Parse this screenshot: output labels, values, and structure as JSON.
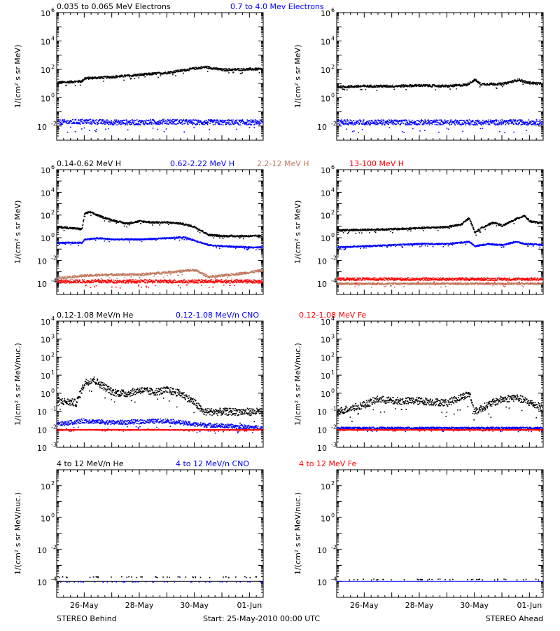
{
  "colors": {
    "black": "#000000",
    "blue": "#0000ff",
    "tan": "#c07a60",
    "red": "#ff0000"
  },
  "footer": {
    "left": "STEREO Behind",
    "center": "Start: 25-May-2010 00:00 UTC",
    "right": "STEREO Ahead"
  },
  "chart_data": [
    {
      "type": "scatter",
      "row": 1,
      "spacecraft": "STEREO Behind",
      "legend": [
        {
          "text": "0.035 to 0.065 MeV Electrons",
          "color": "#000000"
        },
        {
          "text": "0.7 to 4.0 Mev Electrons",
          "color": "#0000ff"
        }
      ],
      "ylabel": "1/(cm² s sr MeV)",
      "yscale": "log",
      "ylim_exp": [
        -3,
        6
      ],
      "ytick_exps": [
        -2,
        0,
        2,
        4,
        6
      ],
      "xlim_days": [
        0,
        7.5
      ],
      "xticks": [
        {
          "day": 1,
          "label": "26-May"
        },
        {
          "day": 3,
          "label": "28-May"
        },
        {
          "day": 5,
          "label": "30-May"
        },
        {
          "day": 7,
          "label": "01-Jun"
        }
      ],
      "series": [
        {
          "color": "#000000",
          "x": [
            0,
            0.9,
            1.0,
            2.0,
            3.0,
            4.0,
            5.0,
            5.4,
            6.0,
            7.0,
            7.5
          ],
          "y_exp": [
            1.1,
            1.2,
            1.4,
            1.5,
            1.65,
            1.8,
            2.1,
            2.2,
            2.0,
            2.05,
            2.05
          ],
          "noise": 0.08
        },
        {
          "color": "#0000ff",
          "x": [
            0,
            1,
            2,
            3,
            4,
            5,
            6,
            7,
            7.5
          ],
          "y_exp": [
            -1.7,
            -1.65,
            -1.7,
            -1.7,
            -1.65,
            -1.7,
            -1.7,
            -1.7,
            -1.7
          ],
          "noise": 0.18
        }
      ]
    },
    {
      "type": "scatter",
      "row": 1,
      "spacecraft": "STEREO Ahead",
      "ylabel": "1/(cm² s sr MeV)",
      "yscale": "log",
      "ylim_exp": [
        -3,
        6
      ],
      "ytick_exps": [
        -2,
        0,
        2,
        4,
        6
      ],
      "xlim_days": [
        0,
        7.5
      ],
      "xticks": [
        {
          "day": 1,
          "label": "26-May"
        },
        {
          "day": 3,
          "label": "28-May"
        },
        {
          "day": 5,
          "label": "30-May"
        },
        {
          "day": 7,
          "label": "01-Jun"
        }
      ],
      "series": [
        {
          "color": "#000000",
          "x": [
            0,
            1,
            2,
            3,
            4,
            4.7,
            5.0,
            5.2,
            6.0,
            6.6,
            6.9,
            7.5
          ],
          "y_exp": [
            0.8,
            0.85,
            0.85,
            0.9,
            0.85,
            0.95,
            1.3,
            1.0,
            1.0,
            1.3,
            1.1,
            1.0
          ],
          "noise": 0.08
        },
        {
          "color": "#0000ff",
          "x": [
            0,
            2,
            4,
            6,
            7.5
          ],
          "y_exp": [
            -1.7,
            -1.7,
            -1.7,
            -1.7,
            -1.7
          ],
          "noise": 0.18
        }
      ]
    },
    {
      "type": "scatter",
      "row": 2,
      "spacecraft": "STEREO Behind",
      "legend": [
        {
          "text": "0.14-0.62 MeV H",
          "color": "#000000"
        },
        {
          "text": "0.62-2.22 MeV H",
          "color": "#0000ff"
        },
        {
          "text": "2.2-12 MeV H",
          "color": "#c07a60"
        },
        {
          "text": "13-100 MeV H",
          "color": "#ff0000"
        }
      ],
      "ylabel": "1/(cm² s sr MeV)",
      "yscale": "log",
      "ylim_exp": [
        -5,
        6
      ],
      "ytick_exps": [
        -4,
        -2,
        0,
        2,
        4,
        6
      ],
      "xlim_days": [
        0,
        7.5
      ],
      "xticks": [
        {
          "day": 1,
          "label": "26-May"
        },
        {
          "day": 3,
          "label": "28-May"
        },
        {
          "day": 5,
          "label": "30-May"
        },
        {
          "day": 7,
          "label": "01-Jun"
        }
      ],
      "series": [
        {
          "color": "#000000",
          "x": [
            0,
            0.5,
            0.9,
            1.0,
            1.2,
            1.6,
            2.0,
            2.5,
            3.0,
            3.5,
            4.0,
            4.5,
            5.0,
            5.5,
            6.0,
            7.0,
            7.5
          ],
          "y_exp": [
            1.0,
            0.9,
            0.8,
            2.2,
            2.3,
            1.9,
            1.6,
            1.3,
            1.5,
            1.4,
            1.4,
            1.3,
            1.0,
            0.3,
            0.2,
            0.2,
            0.2
          ],
          "noise": 0.08
        },
        {
          "color": "#0000ff",
          "x": [
            0,
            0.9,
            1.0,
            1.5,
            2.0,
            3.0,
            4.0,
            4.6,
            5.0,
            5.5,
            6.0,
            7.0,
            7.5
          ],
          "y_exp": [
            -0.4,
            -0.4,
            -0.1,
            0.0,
            -0.1,
            -0.1,
            0.0,
            0.1,
            -0.2,
            -0.6,
            -0.7,
            -0.8,
            -0.8
          ],
          "noise": 0.06
        },
        {
          "color": "#c07a60",
          "x": [
            0,
            1,
            2,
            3,
            4,
            5,
            5.5,
            6,
            7,
            7.5
          ],
          "y_exp": [
            -3.5,
            -3.3,
            -3.2,
            -3.2,
            -3.0,
            -2.8,
            -3.4,
            -3.3,
            -3.0,
            -2.8
          ],
          "noise": 0.1
        },
        {
          "color": "#ff0000",
          "x": [
            0,
            2,
            4,
            6,
            7.5
          ],
          "y_exp": [
            -3.8,
            -3.8,
            -3.8,
            -3.8,
            -3.8
          ],
          "noise": 0.15
        }
      ]
    },
    {
      "type": "scatter",
      "row": 2,
      "spacecraft": "STEREO Ahead",
      "ylabel": "1/(cm² s sr MeV)",
      "yscale": "log",
      "ylim_exp": [
        -5,
        6
      ],
      "ytick_exps": [
        -4,
        -2,
        0,
        2,
        4,
        6
      ],
      "xlim_days": [
        0,
        7.5
      ],
      "xticks": [
        {
          "day": 1,
          "label": "26-May"
        },
        {
          "day": 3,
          "label": "28-May"
        },
        {
          "day": 5,
          "label": "30-May"
        },
        {
          "day": 7,
          "label": "01-Jun"
        }
      ],
      "series": [
        {
          "color": "#000000",
          "x": [
            0,
            1,
            2,
            3,
            4,
            4.5,
            4.8,
            5.0,
            5.3,
            5.7,
            6.0,
            6.5,
            6.8,
            7.0,
            7.5
          ],
          "y_exp": [
            0.7,
            0.75,
            0.8,
            0.9,
            1.0,
            1.2,
            1.8,
            0.5,
            1.0,
            1.4,
            1.1,
            1.7,
            2.0,
            1.5,
            1.3
          ],
          "noise": 0.08
        },
        {
          "color": "#0000ff",
          "x": [
            0,
            1,
            2,
            3,
            4,
            4.8,
            5.0,
            5.5,
            6.0,
            6.5,
            6.8,
            7.0,
            7.5
          ],
          "y_exp": [
            -0.8,
            -0.7,
            -0.6,
            -0.5,
            -0.5,
            -0.3,
            -0.7,
            -0.5,
            -0.6,
            -0.3,
            -0.5,
            -0.5,
            -0.6
          ],
          "noise": 0.06
        },
        {
          "color": "#c07a60",
          "x": [
            0,
            7.5
          ],
          "y_exp": [
            -4.0,
            -4.0
          ],
          "noise": 0.08
        },
        {
          "color": "#ff0000",
          "x": [
            0,
            2,
            4,
            6,
            7.5
          ],
          "y_exp": [
            -3.6,
            -3.6,
            -3.6,
            -3.6,
            -3.6
          ],
          "noise": 0.12
        }
      ]
    },
    {
      "type": "scatter",
      "row": 3,
      "spacecraft": "STEREO Behind",
      "legend": [
        {
          "text": "0.12-1.08 MeV/n He",
          "color": "#000000"
        },
        {
          "text": "0.12-1.08 MeV/n CNO",
          "color": "#0000ff"
        },
        {
          "text": "0.12-1.08 MeV Fe",
          "color": "#ff0000"
        }
      ],
      "ylabel": "1/(cm² s sr MeV/nuc.)",
      "yscale": "log",
      "ylim_exp": [
        -3,
        4
      ],
      "ytick_exps": [
        -3,
        -2,
        -1,
        0,
        1,
        2,
        3,
        4
      ],
      "xlim_days": [
        0,
        7.5
      ],
      "xticks": [
        {
          "day": 1,
          "label": "26-May"
        },
        {
          "day": 3,
          "label": "28-May"
        },
        {
          "day": 5,
          "label": "30-May"
        },
        {
          "day": 7,
          "label": "01-Jun"
        }
      ],
      "series": [
        {
          "color": "#000000",
          "x": [
            0,
            0.7,
            1.0,
            1.3,
            1.6,
            2.0,
            2.5,
            3.0,
            3.5,
            4.0,
            4.5,
            5.0,
            5.3,
            6.0,
            7.5
          ],
          "y_exp": [
            -0.4,
            -0.5,
            0.6,
            0.8,
            0.5,
            0.1,
            0.0,
            0.2,
            0.1,
            0.2,
            0.0,
            -0.5,
            -1.0,
            -1.0,
            -1.0
          ],
          "noise": 0.2
        },
        {
          "color": "#0000ff",
          "x": [
            0,
            1,
            2,
            4,
            5,
            7.5
          ],
          "y_exp": [
            -1.7,
            -1.5,
            -1.6,
            -1.5,
            -1.7,
            -1.9
          ],
          "noise": 0.12
        },
        {
          "color": "#ff0000",
          "x": [
            0,
            7.5
          ],
          "y_exp": [
            -2.0,
            -2.0
          ],
          "noise": 0.02
        }
      ]
    },
    {
      "type": "scatter",
      "row": 3,
      "spacecraft": "STEREO Ahead",
      "ylabel": "1/(cm² s sr MeV/nuc.)",
      "yscale": "log",
      "ylim_exp": [
        -3,
        4
      ],
      "ytick_exps": [
        -3,
        -2,
        -1,
        0,
        1,
        2,
        3,
        4
      ],
      "xlim_days": [
        0,
        7.5
      ],
      "xticks": [
        {
          "day": 1,
          "label": "26-May"
        },
        {
          "day": 3,
          "label": "28-May"
        },
        {
          "day": 5,
          "label": "30-May"
        },
        {
          "day": 7,
          "label": "01-Jun"
        }
      ],
      "series": [
        {
          "color": "#000000",
          "x": [
            0,
            1,
            1.5,
            2,
            3,
            4,
            4.8,
            5.0,
            5.5,
            6.0,
            6.5,
            7.0,
            7.5
          ],
          "y_exp": [
            -1.0,
            -0.6,
            -0.3,
            -0.4,
            -0.4,
            -0.5,
            0.0,
            -1.0,
            -0.6,
            -0.3,
            -0.2,
            -0.5,
            -0.8
          ],
          "noise": 0.2
        },
        {
          "color": "#0000ff",
          "x": [
            0,
            7.5
          ],
          "y_exp": [
            -1.9,
            -1.9
          ],
          "noise": 0.05
        },
        {
          "color": "#ff0000",
          "x": [
            0,
            7.5
          ],
          "y_exp": [
            -2.0,
            -2.0
          ],
          "noise": 0.02
        }
      ]
    },
    {
      "type": "scatter",
      "row": 4,
      "spacecraft": "STEREO Behind",
      "legend": [
        {
          "text": "4 to 12 MeV/n He",
          "color": "#000000"
        },
        {
          "text": "4 to 12 MeV/n CNO",
          "color": "#0000ff"
        },
        {
          "text": "4 to 12 MeV Fe",
          "color": "#ff0000"
        }
      ],
      "ylabel": "1/(cm² s sr MeV/nuc.)",
      "yscale": "log",
      "ylim_exp": [
        -5,
        3
      ],
      "ytick_exps": [
        -4,
        -2,
        0,
        2
      ],
      "xlim_days": [
        0,
        7.5
      ],
      "xticks": [
        {
          "day": 1,
          "label": "26-May"
        },
        {
          "day": 3,
          "label": "28-May"
        },
        {
          "day": 5,
          "label": "30-May"
        },
        {
          "day": 7,
          "label": "01-Jun"
        }
      ],
      "series": [
        {
          "color": "#000000",
          "x": [
            0,
            7.5
          ],
          "y_exp": [
            -4.0,
            -4.0
          ],
          "noise": 0.0,
          "line": true
        },
        {
          "color": "#000000",
          "x": [
            0,
            7.5
          ],
          "y_exp": [
            -3.7,
            -3.7
          ],
          "noise": 0.03,
          "sparse": true
        },
        {
          "color": "#0000ff",
          "x": [
            0,
            7.5
          ],
          "y_exp": [
            -4.0,
            -4.0
          ],
          "noise": 0.0,
          "sparse": true
        }
      ]
    },
    {
      "type": "scatter",
      "row": 4,
      "spacecraft": "STEREO Ahead",
      "ylabel": "1/(cm² s sr MeV/nuc.)",
      "yscale": "log",
      "ylim_exp": [
        -5,
        3
      ],
      "ytick_exps": [
        -4,
        -2,
        0,
        2
      ],
      "xlim_days": [
        0,
        7.5
      ],
      "xticks": [
        {
          "day": 1,
          "label": "26-May"
        },
        {
          "day": 3,
          "label": "28-May"
        },
        {
          "day": 5,
          "label": "30-May"
        },
        {
          "day": 7,
          "label": "01-Jun"
        }
      ],
      "series": [
        {
          "color": "#0000ff",
          "x": [
            0,
            7.5
          ],
          "y_exp": [
            -4.0,
            -4.0
          ],
          "noise": 0.0,
          "line": true
        },
        {
          "color": "#000000",
          "x": [
            0,
            7.5
          ],
          "y_exp": [
            -3.85,
            -3.85
          ],
          "noise": 0.03,
          "sparse": true
        }
      ]
    }
  ]
}
